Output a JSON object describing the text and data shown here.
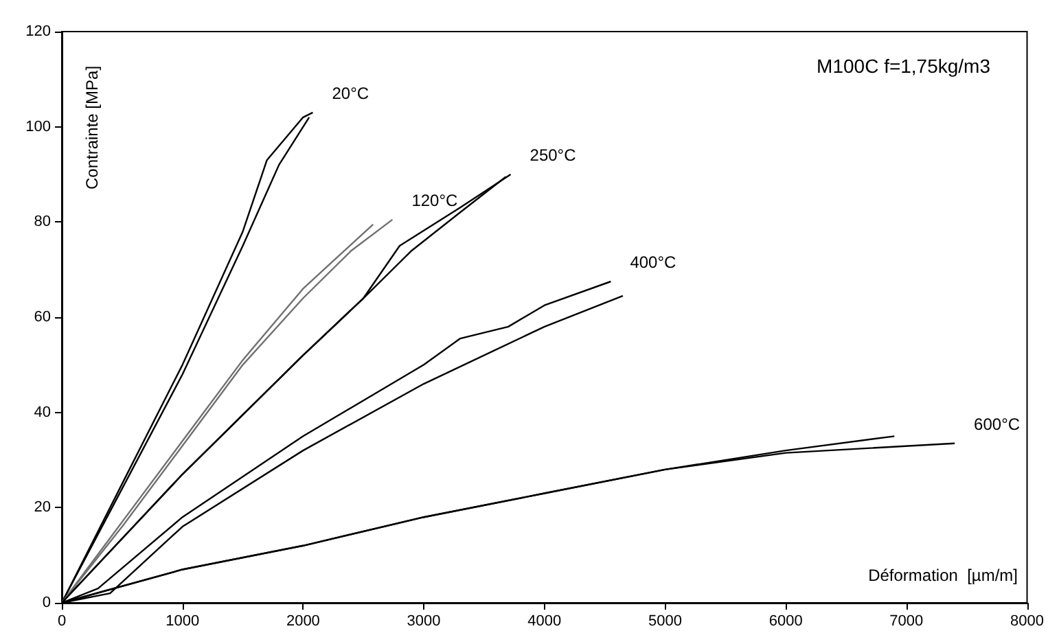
{
  "chart_data": {
    "type": "line",
    "xlabel": "Déformation  [µm/m]",
    "ylabel": "Contrainte [MPa]",
    "xlim": [
      0,
      8000
    ],
    "xticks": [
      0,
      1000,
      2000,
      3000,
      4000,
      5000,
      6000,
      7000,
      8000
    ],
    "ylim": [
      0,
      120
    ],
    "yticks": [
      0,
      20,
      40,
      60,
      80,
      100,
      120
    ],
    "grid": false,
    "marker": "none",
    "line_style": "solid",
    "annotations": [
      "M100C f=1,75kg/m3"
    ],
    "series": [
      {
        "name": "20°C",
        "color": "#000000",
        "x": [
          0,
          500,
          1000,
          1500,
          1700,
          2000,
          2080
        ],
        "values": [
          0,
          25,
          50,
          78,
          93,
          102,
          103
        ]
      },
      {
        "color": "#000000",
        "x": [
          0,
          500,
          1000,
          1500,
          1800,
          2050
        ],
        "values": [
          0,
          24,
          48,
          75,
          92,
          102
        ]
      },
      {
        "color": "#707070",
        "x": [
          0,
          500,
          1000,
          1500,
          2000,
          2300,
          2580
        ],
        "values": [
          0,
          17,
          34,
          51,
          66,
          73,
          79.5
        ]
      },
      {
        "name": "120°C",
        "color": "#707070",
        "x": [
          0,
          500,
          1000,
          1500,
          2000,
          2400,
          2740
        ],
        "values": [
          0,
          16,
          33,
          50,
          64,
          74,
          80.5
        ]
      },
      {
        "name": "250°C",
        "color": "#000000",
        "x": [
          0,
          1000,
          2000,
          2500,
          2800,
          3300,
          3720
        ],
        "values": [
          0,
          27,
          52,
          64,
          75,
          83,
          90
        ]
      },
      {
        "color": "#000000",
        "x": [
          0,
          1000,
          2000,
          2500,
          2900,
          3300,
          3680
        ],
        "values": [
          0,
          27,
          52,
          64,
          74,
          82,
          89.5
        ]
      },
      {
        "name": "400°C",
        "color": "#000000",
        "x": [
          0,
          300,
          1000,
          2000,
          3000,
          3300,
          3700,
          4000,
          4550
        ],
        "values": [
          0,
          3,
          18,
          35,
          50,
          55.5,
          58,
          62.5,
          67.5
        ]
      },
      {
        "color": "#000000",
        "x": [
          0,
          400,
          1000,
          2000,
          3000,
          4000,
          4650
        ],
        "values": [
          0,
          2,
          16,
          32,
          46,
          58,
          64.5
        ]
      },
      {
        "color": "#000000",
        "x": [
          0,
          1000,
          2000,
          3000,
          4000,
          5000,
          6000,
          6900
        ],
        "values": [
          0,
          7,
          12,
          18,
          23,
          28,
          32,
          35
        ]
      },
      {
        "name": "600°C",
        "color": "#000000",
        "x": [
          0,
          1000,
          2000,
          3000,
          4000,
          5000,
          6000,
          7400
        ],
        "values": [
          0,
          7,
          12,
          18,
          23,
          28,
          31.5,
          33.5
        ]
      }
    ]
  }
}
